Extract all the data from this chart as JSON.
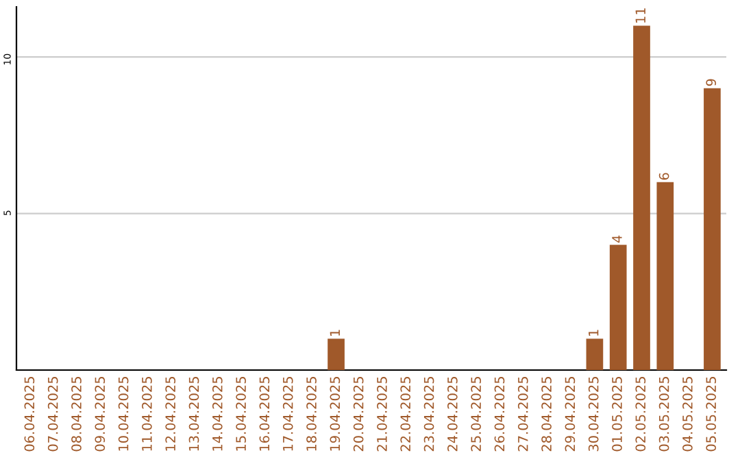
{
  "chart_data": {
    "type": "bar",
    "categories": [
      "06.04.2025",
      "07.04.2025",
      "08.04.2025",
      "09.04.2025",
      "10.04.2025",
      "11.04.2025",
      "12.04.2025",
      "13.04.2025",
      "14.04.2025",
      "15.04.2025",
      "16.04.2025",
      "17.04.2025",
      "18.04.2025",
      "19.04.2025",
      "20.04.2025",
      "21.04.2025",
      "22.04.2025",
      "23.04.2025",
      "24.04.2025",
      "25.04.2025",
      "26.04.2025",
      "27.04.2025",
      "28.04.2025",
      "29.04.2025",
      "30.04.2025",
      "01.05.2025",
      "02.05.2025",
      "03.05.2025",
      "04.05.2025",
      "05.05.2025"
    ],
    "values": [
      0,
      0,
      0,
      0,
      0,
      0,
      0,
      0,
      0,
      0,
      0,
      0,
      0,
      1,
      0,
      0,
      0,
      0,
      0,
      0,
      0,
      0,
      0,
      0,
      1,
      4,
      11,
      6,
      0,
      9
    ],
    "value_labels": [
      null,
      null,
      null,
      null,
      null,
      null,
      null,
      null,
      null,
      null,
      null,
      null,
      null,
      "1",
      null,
      null,
      null,
      null,
      null,
      null,
      null,
      null,
      null,
      null,
      "1",
      "4",
      "11",
      "6",
      null,
      "9"
    ],
    "color": "#a0592a",
    "ylim": [
      0,
      11.6
    ],
    "yticks": [
      5,
      10
    ],
    "grid": "y",
    "legend": false
  }
}
